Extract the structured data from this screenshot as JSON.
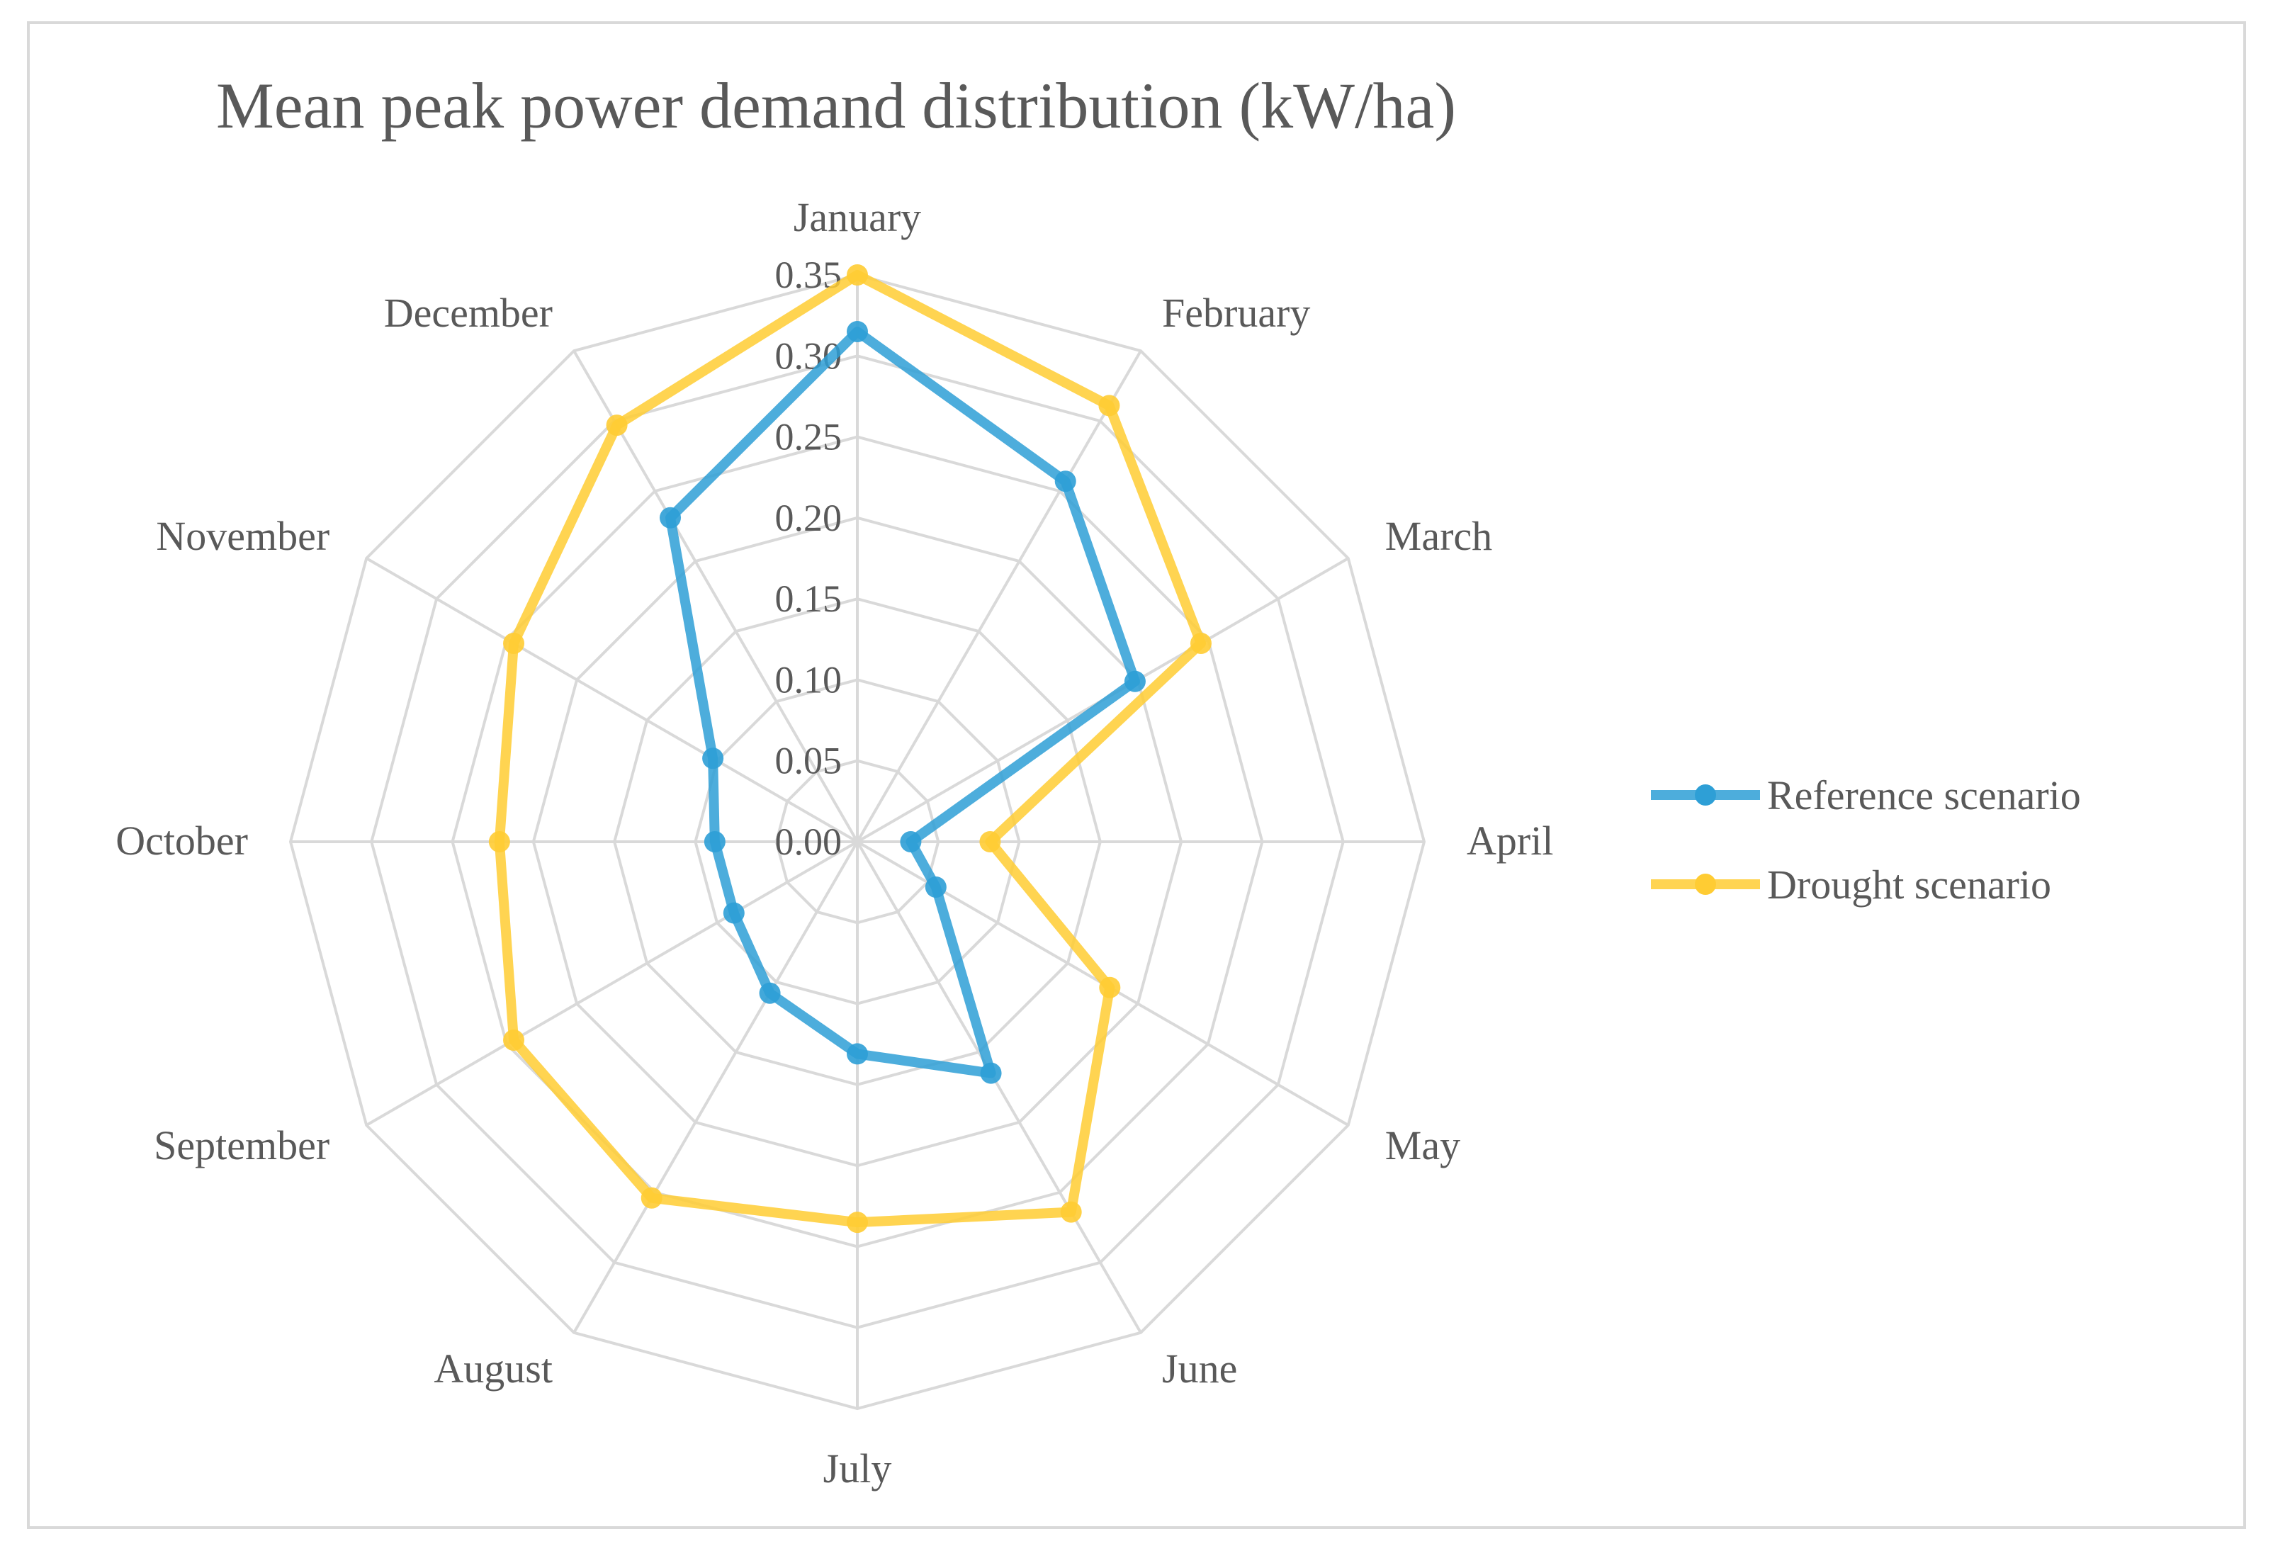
{
  "chart_data": {
    "type": "radar",
    "title": "Mean peak power demand distribution (kW/ha)",
    "categories": [
      "January",
      "February",
      "March",
      "April",
      "May",
      "June",
      "July",
      "August",
      "September",
      "October",
      "November",
      "December"
    ],
    "rlim": [
      0,
      0.35
    ],
    "ticks": [
      0.0,
      0.05,
      0.1,
      0.15,
      0.2,
      0.25,
      0.3,
      0.35
    ],
    "tick_labels": [
      "0.00",
      "0.05",
      "0.10",
      "0.15",
      "0.20",
      "0.25",
      "0.30",
      "0.35"
    ],
    "grid": true,
    "legend_position": "right",
    "series": [
      {
        "name": "Reference scenario",
        "color": "#2E9FD6",
        "values": [
          0.315,
          0.257,
          0.198,
          0.033,
          0.056,
          0.165,
          0.131,
          0.108,
          0.088,
          0.088,
          0.103,
          0.231
        ]
      },
      {
        "name": "Drought scenario",
        "color": "#FFCC33",
        "values": [
          0.35,
          0.311,
          0.245,
          0.082,
          0.18,
          0.264,
          0.235,
          0.254,
          0.245,
          0.221,
          0.245,
          0.297
        ]
      }
    ]
  }
}
